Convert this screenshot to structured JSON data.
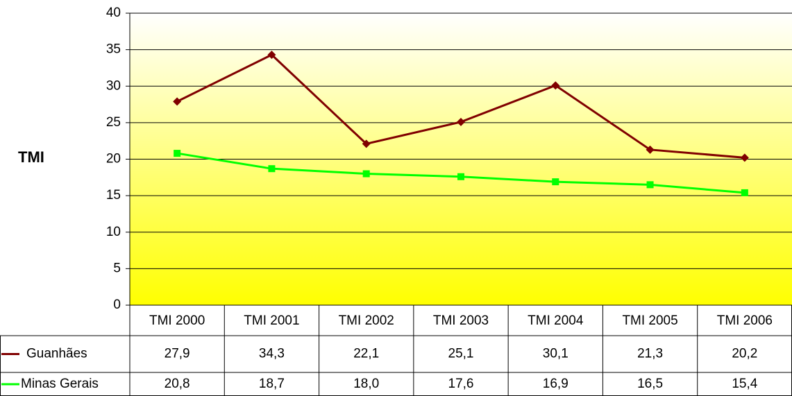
{
  "chart_data": {
    "type": "line",
    "ylabel": "TMI",
    "categories": [
      "TMI 2000",
      "TMI 2001",
      "TMI 2002",
      "TMI 2003",
      "TMI 2004",
      "TMI 2005",
      "TMI 2006"
    ],
    "series": [
      {
        "name": "Guanhães",
        "color": "#800000",
        "marker": "diamond",
        "values": [
          27.9,
          34.3,
          22.1,
          25.1,
          30.1,
          21.3,
          20.2
        ],
        "value_labels": [
          "27,9",
          "34,3",
          "22,1",
          "25,1",
          "30,1",
          "21,3",
          "20,2"
        ]
      },
      {
        "name": "Minas Gerais",
        "color": "#00ff00",
        "marker": "square",
        "values": [
          20.8,
          18.7,
          18.0,
          17.6,
          16.9,
          16.5,
          15.4
        ],
        "value_labels": [
          "20,8",
          "18,7",
          "18,0",
          "17,6",
          "16,9",
          "16,5",
          "15,4"
        ]
      }
    ],
    "ylim": [
      0,
      40
    ],
    "yticks": [
      0,
      5,
      10,
      15,
      20,
      25,
      30,
      35,
      40
    ],
    "grid": true,
    "data_table": true
  }
}
